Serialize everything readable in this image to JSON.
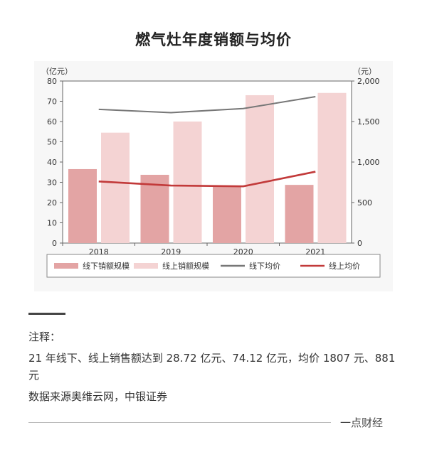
{
  "title": "燃气灶年度销额与均价",
  "chart_data": {
    "type": "bar",
    "categories": [
      "2018",
      "2019",
      "2020",
      "2021"
    ],
    "left_axis": {
      "unit": "（亿元）",
      "ticks": [
        "0",
        "10",
        "20",
        "30",
        "40",
        "50",
        "60",
        "70",
        "80"
      ],
      "ylim": [
        0,
        80
      ]
    },
    "right_axis": {
      "unit": "（元）",
      "ticks": [
        "0",
        "500",
        "1,000",
        "1,500",
        "2,000"
      ],
      "ylim": [
        0,
        2000
      ]
    },
    "series": [
      {
        "name": "线下销额规模",
        "kind": "bar",
        "axis": "left",
        "color": "#e3a4a4",
        "values": [
          36.5,
          33.7,
          28.3,
          28.72
        ]
      },
      {
        "name": "线上销额规模",
        "kind": "bar",
        "axis": "left",
        "color": "#f4d3d3",
        "values": [
          54.5,
          60.0,
          73.0,
          74.12
        ]
      },
      {
        "name": "线下均价",
        "kind": "line",
        "axis": "right",
        "color": "#777777",
        "values": [
          1650,
          1610,
          1660,
          1807
        ]
      },
      {
        "name": "线上均价",
        "kind": "line",
        "axis": "right",
        "color": "#c23a3a",
        "values": [
          760,
          710,
          700,
          881
        ]
      }
    ]
  },
  "notes": {
    "label": "注释：",
    "line1": "21 年线下、线上销售额达到 28.72 亿元、74.12 亿元，均价 1807 元、881 元",
    "line2": "数据来源奥维云网，中银证券"
  },
  "brand": "一点财经"
}
